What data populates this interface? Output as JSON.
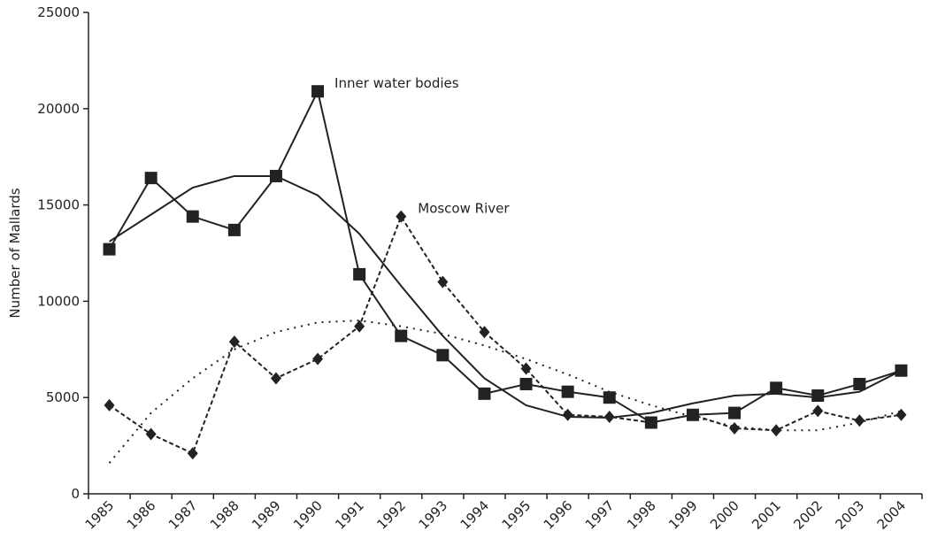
{
  "chart_data": {
    "type": "line",
    "y_label": "Number of Mallards",
    "categories": [
      "1985",
      "1986",
      "1987",
      "1988",
      "1989",
      "1990",
      "1991",
      "1992",
      "1993",
      "1994",
      "1995",
      "1996",
      "1997",
      "1998",
      "1999",
      "2000",
      "2001",
      "2002",
      "2003",
      "2004"
    ],
    "series": [
      {
        "name": "Inner water bodies",
        "color": "#222222",
        "marker": "square",
        "dash": "solid",
        "values": [
          12700,
          16400,
          14400,
          13700,
          16500,
          20900,
          11400,
          8200,
          7200,
          5200,
          5700,
          5300,
          5000,
          3700,
          4100,
          4200,
          5500,
          5100,
          5700,
          6400
        ],
        "trend": [
          13100,
          14500,
          15900,
          16500,
          16500,
          15500,
          13500,
          10800,
          8200,
          6000,
          4600,
          4000,
          3950,
          4200,
          4700,
          5100,
          5200,
          5000,
          5300,
          6400
        ]
      },
      {
        "name": "Moscow River",
        "color": "#222222",
        "marker": "diamond",
        "dash": "dashed",
        "values": [
          4600,
          3100,
          2100,
          7900,
          6000,
          7000,
          8700,
          14400,
          11000,
          8400,
          6500,
          4100,
          4000,
          3700,
          4100,
          3400,
          3300,
          4300,
          3800,
          4100
        ],
        "trend": [
          1600,
          4200,
          6000,
          7500,
          8400,
          8900,
          9000,
          8700,
          8300,
          7700,
          7000,
          6200,
          5300,
          4600,
          4000,
          3500,
          3300,
          3300,
          3700,
          4300
        ]
      }
    ],
    "ylim": [
      0,
      25000
    ],
    "yticks": [
      0,
      5000,
      10000,
      15000,
      20000,
      25000
    ],
    "grid": false
  }
}
